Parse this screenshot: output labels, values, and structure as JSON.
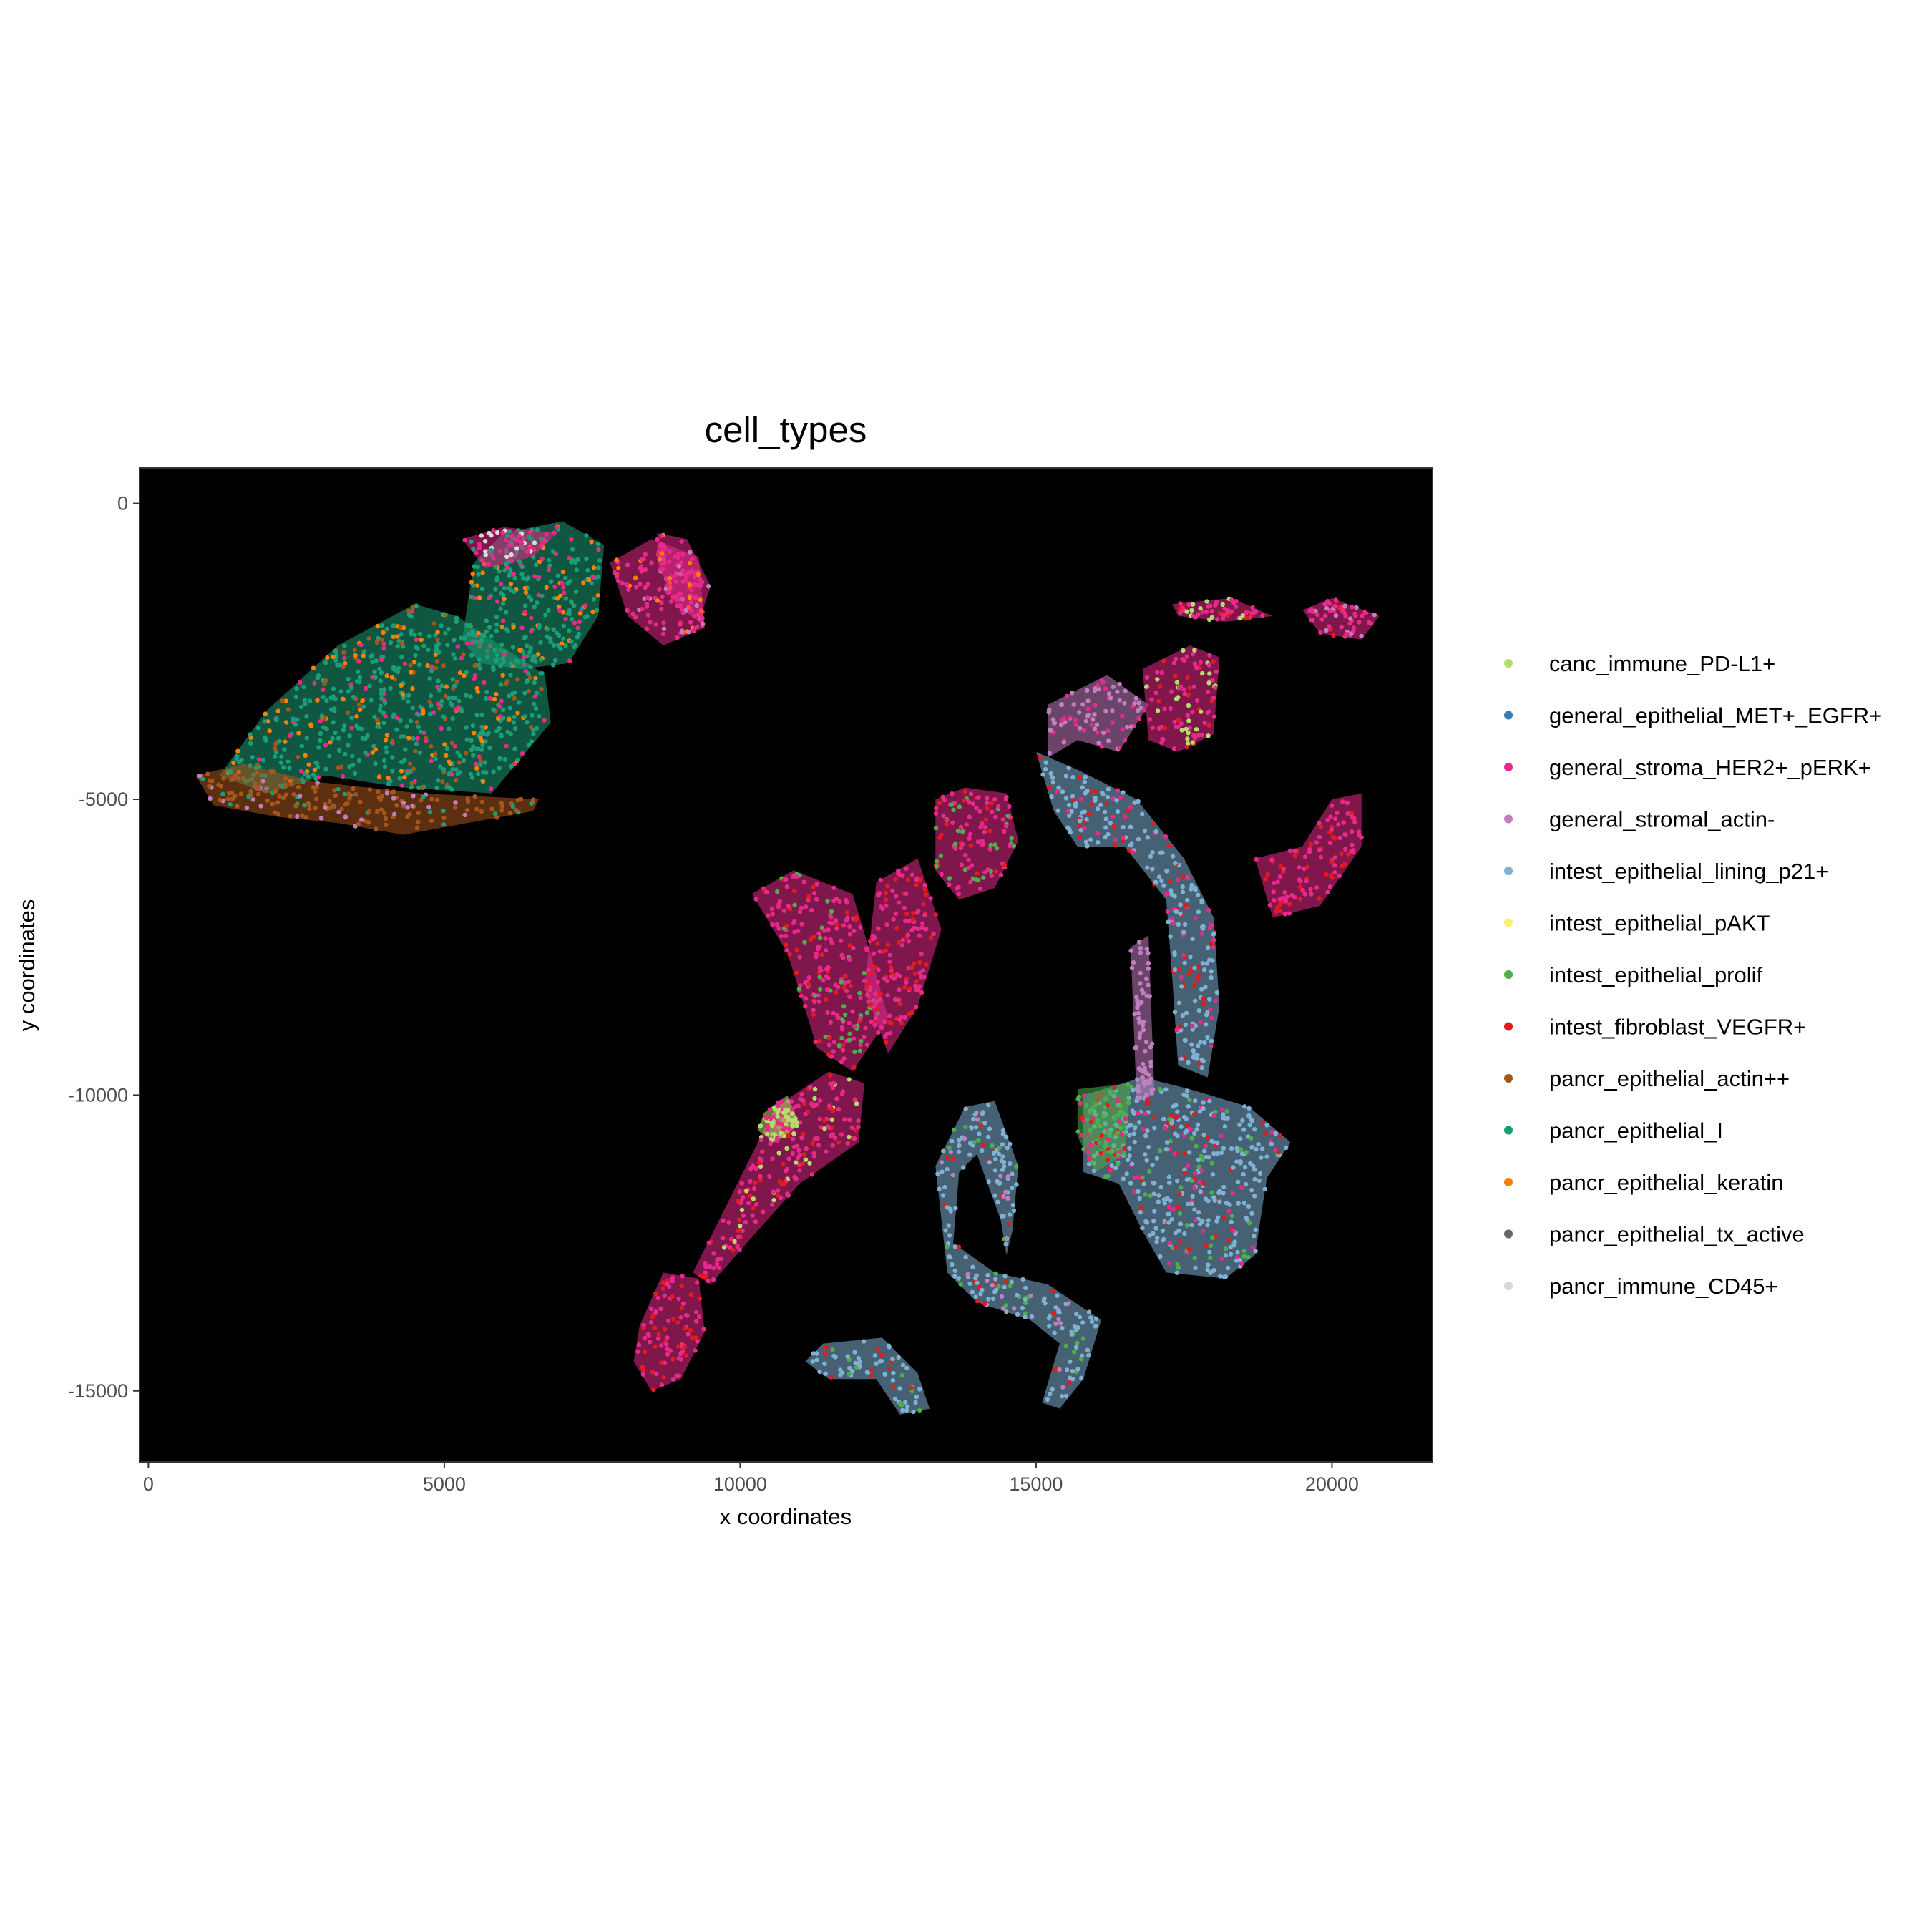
{
  "chart_data": {
    "type": "scatter",
    "title": "cell_types",
    "xlabel": "x coordinates",
    "ylabel": "y coordinates",
    "xlim": [
      -150,
      21700
    ],
    "ylim": [
      -16200,
      600
    ],
    "x_ticks": [
      0,
      5000,
      10000,
      15000,
      20000
    ],
    "x_tick_labels": [
      "0",
      "5000",
      "10000",
      "15000",
      "20000"
    ],
    "y_ticks": [
      0,
      -5000,
      -10000,
      -15000
    ],
    "y_tick_labels": [
      "0",
      "-5000",
      "-10000",
      "-15000"
    ],
    "grid": false,
    "panel_background": "#000000",
    "legend_position": "right",
    "series": [
      {
        "name": "canc_immune_PD-L1+",
        "color": "#B3DE69"
      },
      {
        "name": "general_epithelial_MET+_EGFR+",
        "color": "#377EB8"
      },
      {
        "name": "general_stroma_HER2+_pERK+",
        "color": "#E7298A"
      },
      {
        "name": "general_stromal_actin-",
        "color": "#C17EC0"
      },
      {
        "name": "intest_epithelial_lining_p21+",
        "color": "#80B1D3"
      },
      {
        "name": "intest_epithelial_pAKT",
        "color": "#FFED6F"
      },
      {
        "name": "intest_epithelial_prolif",
        "color": "#4DAF4A"
      },
      {
        "name": "intest_fibroblast_VEGFR+",
        "color": "#E41A1C"
      },
      {
        "name": "pancr_epithelial_actin++",
        "color": "#A6561D"
      },
      {
        "name": "pancr_epithelial_I",
        "color": "#1B9E77"
      },
      {
        "name": "pancr_epithelial_keratin",
        "color": "#FF7F00"
      },
      {
        "name": "pancr_epithelial_tx_active",
        "color": "#666666"
      },
      {
        "name": "pancr_immune_CD45+",
        "color": "#D9D9D9"
      }
    ],
    "tissue_regions": [
      {
        "series": "pancr_epithelial_I",
        "points": [
          [
            1200,
            -4600
          ],
          [
            2000,
            -3500
          ],
          [
            3200,
            -2400
          ],
          [
            4500,
            -1700
          ],
          [
            5200,
            -1900
          ],
          [
            6700,
            -2900
          ],
          [
            6800,
            -3700
          ],
          [
            5800,
            -4900
          ],
          [
            4300,
            -4800
          ],
          [
            3000,
            -4600
          ],
          [
            2000,
            -4900
          ]
        ],
        "mix": [
          "pancr_epithelial_keratin",
          "general_stroma_HER2+_pERK+",
          "pancr_epithelial_actin++"
        ]
      },
      {
        "series": "pancr_epithelial_I",
        "points": [
          [
            5300,
            -2300
          ],
          [
            5500,
            -1000
          ],
          [
            6000,
            -500
          ],
          [
            7000,
            -300
          ],
          [
            7700,
            -700
          ],
          [
            7600,
            -1900
          ],
          [
            7100,
            -2700
          ],
          [
            6300,
            -2800
          ],
          [
            5600,
            -2700
          ]
        ],
        "mix": [
          "pancr_epithelial_keratin",
          "general_stroma_HER2+_pERK+"
        ]
      },
      {
        "series": "general_stroma_HER2+_pERK+",
        "points": [
          [
            5300,
            -600
          ],
          [
            6000,
            -400
          ],
          [
            6900,
            -500
          ],
          [
            6500,
            -900
          ],
          [
            5700,
            -1100
          ]
        ],
        "mix": [
          "pancr_epithelial_I",
          "pancr_immune_CD45+"
        ]
      },
      {
        "series": "pancr_epithelial_actin++",
        "points": [
          [
            800,
            -4600
          ],
          [
            1600,
            -4400
          ],
          [
            2800,
            -4700
          ],
          [
            4600,
            -4900
          ],
          [
            6600,
            -5000
          ],
          [
            6500,
            -5200
          ],
          [
            4300,
            -5600
          ],
          [
            3200,
            -5400
          ],
          [
            2200,
            -5300
          ],
          [
            1100,
            -5100
          ]
        ],
        "mix": [
          "pancr_epithelial_I",
          "general_stromal_actin-"
        ]
      },
      {
        "series": "general_stroma_HER2+_pERK+",
        "points": [
          [
            7800,
            -1000
          ],
          [
            8500,
            -600
          ],
          [
            9300,
            -900
          ],
          [
            9400,
            -2100
          ],
          [
            8700,
            -2400
          ],
          [
            8100,
            -1900
          ]
        ],
        "mix": [
          "general_stromal_actin-",
          "pancr_epithelial_keratin"
        ]
      },
      {
        "series": "general_stroma_HER2+_pERK+",
        "points": [
          [
            8300,
            -13900
          ],
          [
            8700,
            -13000
          ],
          [
            9300,
            -13100
          ],
          [
            9400,
            -14000
          ],
          [
            9000,
            -14800
          ],
          [
            8500,
            -15000
          ],
          [
            8200,
            -14500
          ]
        ],
        "mix": [
          "intest_fibroblast_VEGFR+"
        ]
      },
      {
        "series": "general_stroma_HER2+_pERK+",
        "points": [
          [
            9200,
            -13000
          ],
          [
            10000,
            -11400
          ],
          [
            10600,
            -10200
          ],
          [
            11500,
            -9600
          ],
          [
            12100,
            -9800
          ],
          [
            12000,
            -10800
          ],
          [
            11000,
            -11500
          ],
          [
            10200,
            -12400
          ],
          [
            9500,
            -13200
          ]
        ],
        "mix": [
          "canc_immune_PD-L1+",
          "intest_fibroblast_VEGFR+"
        ]
      },
      {
        "series": "general_stroma_HER2+_pERK+",
        "points": [
          [
            10200,
            -6600
          ],
          [
            10900,
            -6200
          ],
          [
            11900,
            -6600
          ],
          [
            12200,
            -7600
          ],
          [
            12500,
            -8700
          ],
          [
            11900,
            -9600
          ],
          [
            11300,
            -9200
          ],
          [
            10800,
            -7600
          ]
        ],
        "mix": [
          "intest_epithelial_prolif",
          "intest_fibroblast_VEGFR+"
        ]
      },
      {
        "series": "general_stroma_HER2+_pERK+",
        "points": [
          [
            13300,
            -5000
          ],
          [
            13800,
            -4800
          ],
          [
            14500,
            -4900
          ],
          [
            14700,
            -5700
          ],
          [
            14300,
            -6500
          ],
          [
            13700,
            -6700
          ],
          [
            13300,
            -6200
          ]
        ],
        "mix": [
          "intest_epithelial_prolif",
          "intest_fibroblast_VEGFR+"
        ]
      },
      {
        "series": "general_stroma_HER2+_pERK+",
        "points": [
          [
            12300,
            -6400
          ],
          [
            13000,
            -6000
          ],
          [
            13400,
            -7200
          ],
          [
            13000,
            -8500
          ],
          [
            12500,
            -9300
          ],
          [
            12100,
            -8200
          ]
        ],
        "mix": [
          "intest_fibroblast_VEGFR+"
        ]
      },
      {
        "series": "canc_immune_PD-L1+",
        "points": [
          [
            10400,
            -10300
          ],
          [
            10800,
            -10000
          ],
          [
            11000,
            -10500
          ],
          [
            10600,
            -10800
          ],
          [
            10300,
            -10600
          ]
        ],
        "mix": [
          "general_stroma_HER2+_pERK+"
        ]
      },
      {
        "series": "intest_epithelial_lining_p21+",
        "points": [
          [
            13300,
            -11200
          ],
          [
            13800,
            -10200
          ],
          [
            14300,
            -10100
          ],
          [
            14700,
            -11200
          ],
          [
            14600,
            -12300
          ],
          [
            14500,
            -12700
          ],
          [
            14400,
            -12100
          ],
          [
            14000,
            -11000
          ],
          [
            13700,
            -11300
          ],
          [
            13600,
            -12500
          ],
          [
            14300,
            -13000
          ],
          [
            15200,
            -13200
          ],
          [
            16100,
            -13800
          ],
          [
            15800,
            -14800
          ],
          [
            15400,
            -15300
          ],
          [
            15100,
            -15200
          ],
          [
            15400,
            -14200
          ],
          [
            14900,
            -13800
          ],
          [
            14000,
            -13500
          ],
          [
            13500,
            -13000
          ]
        ],
        "mix": [
          "intest_fibroblast_VEGFR+",
          "intest_epithelial_prolif",
          "general_stromal_actin-"
        ]
      },
      {
        "series": "intest_epithelial_lining_p21+",
        "points": [
          [
            11100,
            -14500
          ],
          [
            11400,
            -14200
          ],
          [
            12400,
            -14100
          ],
          [
            13000,
            -14700
          ],
          [
            13200,
            -15300
          ],
          [
            12700,
            -15400
          ],
          [
            12300,
            -14800
          ],
          [
            11500,
            -14800
          ]
        ],
        "mix": [
          "intest_fibroblast_VEGFR+",
          "intest_epithelial_prolif"
        ]
      },
      {
        "series": "intest_epithelial_lining_p21+",
        "points": [
          [
            15000,
            -4200
          ],
          [
            15700,
            -4500
          ],
          [
            16700,
            -5000
          ],
          [
            17500,
            -6000
          ],
          [
            18000,
            -7000
          ],
          [
            18100,
            -8500
          ],
          [
            17900,
            -9700
          ],
          [
            17400,
            -9500
          ],
          [
            17300,
            -8000
          ],
          [
            17200,
            -6700
          ],
          [
            16500,
            -5800
          ],
          [
            15700,
            -5800
          ],
          [
            15300,
            -5200
          ]
        ],
        "mix": [
          "intest_fibroblast_VEGFR+",
          "general_stroma_HER2+_pERK+"
        ]
      },
      {
        "series": "intest_epithelial_lining_p21+",
        "points": [
          [
            15800,
            -10000
          ],
          [
            16800,
            -9700
          ],
          [
            17600,
            -9900
          ],
          [
            18600,
            -10200
          ],
          [
            19300,
            -10800
          ],
          [
            18900,
            -11400
          ],
          [
            18700,
            -12700
          ],
          [
            18200,
            -13100
          ],
          [
            17200,
            -13000
          ],
          [
            16800,
            -12300
          ],
          [
            16400,
            -11500
          ],
          [
            15800,
            -11300
          ]
        ],
        "mix": [
          "intest_fibroblast_VEGFR+",
          "intest_epithelial_prolif",
          "general_stroma_HER2+_pERK+"
        ]
      },
      {
        "series": "intest_epithelial_prolif",
        "points": [
          [
            15700,
            -9900
          ],
          [
            16600,
            -9800
          ],
          [
            16500,
            -11000
          ],
          [
            16000,
            -11300
          ],
          [
            15700,
            -10700
          ]
        ],
        "mix": [
          "general_stroma_HER2+_pERK+",
          "intest_fibroblast_VEGFR+"
        ]
      },
      {
        "series": "general_stromal_actin-",
        "points": [
          [
            16600,
            -7500
          ],
          [
            16900,
            -7300
          ],
          [
            17000,
            -10000
          ],
          [
            16700,
            -10100
          ]
        ],
        "mix": []
      },
      {
        "series": "general_stromal_actin-",
        "points": [
          [
            15200,
            -3400
          ],
          [
            16200,
            -2900
          ],
          [
            16900,
            -3400
          ],
          [
            16400,
            -4200
          ],
          [
            15700,
            -4000
          ],
          [
            15200,
            -4300
          ]
        ],
        "mix": [
          "general_stroma_HER2+_pERK+"
        ]
      },
      {
        "series": "general_stroma_HER2+_pERK+",
        "points": [
          [
            16800,
            -2800
          ],
          [
            17600,
            -2400
          ],
          [
            18100,
            -2600
          ],
          [
            18000,
            -3900
          ],
          [
            17400,
            -4200
          ],
          [
            16900,
            -4000
          ]
        ],
        "mix": [
          "canc_immune_PD-L1+",
          "intest_fibroblast_VEGFR+"
        ]
      },
      {
        "series": "general_stroma_HER2+_pERK+",
        "points": [
          [
            18700,
            -6000
          ],
          [
            19500,
            -5800
          ],
          [
            20000,
            -5000
          ],
          [
            20500,
            -4900
          ],
          [
            20500,
            -5800
          ],
          [
            19800,
            -6800
          ],
          [
            19000,
            -7000
          ]
        ],
        "mix": [
          "intest_fibroblast_VEGFR+"
        ]
      },
      {
        "series": "general_stroma_HER2+_pERK+",
        "points": [
          [
            19500,
            -1800
          ],
          [
            20000,
            -1600
          ],
          [
            20800,
            -1900
          ],
          [
            20500,
            -2300
          ],
          [
            19800,
            -2200
          ]
        ],
        "mix": [
          "general_stromal_actin-",
          "intest_fibroblast_VEGFR+"
        ]
      },
      {
        "series": "general_stroma_HER2+_pERK+",
        "points": [
          [
            17300,
            -1700
          ],
          [
            18300,
            -1600
          ],
          [
            19000,
            -1900
          ],
          [
            18200,
            -2000
          ],
          [
            17400,
            -1900
          ]
        ],
        "mix": [
          "intest_fibroblast_VEGFR+",
          "canc_immune_PD-L1+"
        ]
      },
      {
        "series": "general_stroma_HER2+_pERK+",
        "points": [
          [
            8600,
            -500
          ],
          [
            9100,
            -600
          ],
          [
            9500,
            -1400
          ],
          [
            9300,
            -2000
          ],
          [
            8900,
            -1700
          ],
          [
            8600,
            -1000
          ]
        ],
        "mix": [
          "general_stromal_actin-",
          "pancr_epithelial_keratin"
        ]
      }
    ]
  },
  "legend": {
    "items": [
      {
        "label": "canc_immune_PD-L1+",
        "color": "#B3DE69"
      },
      {
        "label": "general_epithelial_MET+_EGFR+",
        "color": "#377EB8"
      },
      {
        "label": "general_stroma_HER2+_pERK+",
        "color": "#E7298A"
      },
      {
        "label": "general_stromal_actin-",
        "color": "#C17EC0"
      },
      {
        "label": "intest_epithelial_lining_p21+",
        "color": "#80B1D3"
      },
      {
        "label": "intest_epithelial_pAKT",
        "color": "#FFED6F"
      },
      {
        "label": "intest_epithelial_prolif",
        "color": "#4DAF4A"
      },
      {
        "label": "intest_fibroblast_VEGFR+",
        "color": "#E41A1C"
      },
      {
        "label": "pancr_epithelial_actin++",
        "color": "#A6561D"
      },
      {
        "label": "pancr_epithelial_I",
        "color": "#1B9E77"
      },
      {
        "label": "pancr_epithelial_keratin",
        "color": "#FF7F00"
      },
      {
        "label": "pancr_epithelial_tx_active",
        "color": "#666666"
      },
      {
        "label": "pancr_immune_CD45+",
        "color": "#D9D9D9"
      }
    ]
  }
}
